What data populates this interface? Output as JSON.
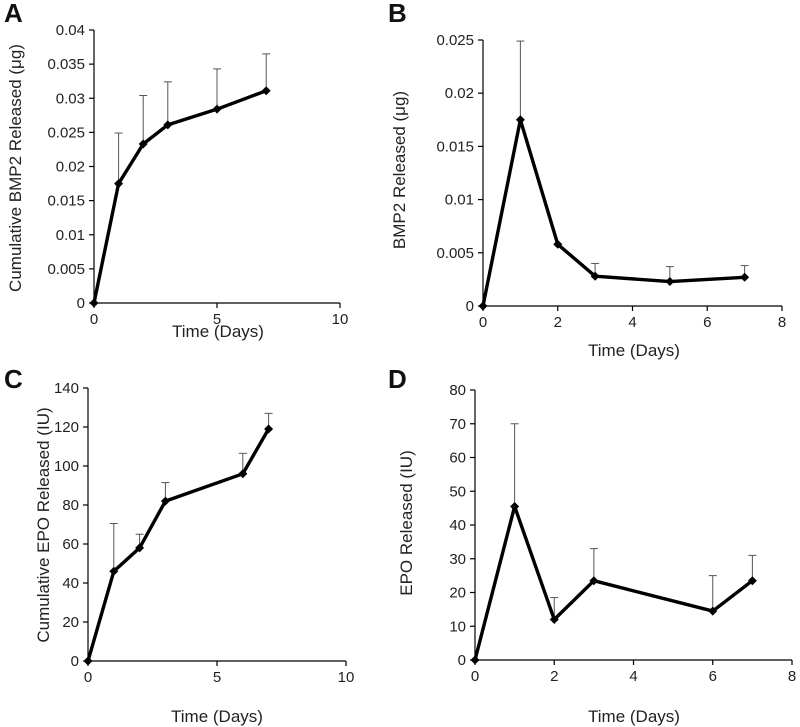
{
  "chart_data": [
    {
      "panel": "A",
      "type": "line",
      "xlabel": "Time (Days)",
      "ylabel": "Cumulative BMP2 Released (μg)",
      "xlim": [
        0,
        10
      ],
      "ylim": [
        0,
        0.04
      ],
      "xticks": [
        0,
        5,
        10
      ],
      "xtick_labels": [
        "0",
        "5",
        "10"
      ],
      "yticks": [
        0,
        0.005,
        0.01,
        0.015,
        0.02,
        0.025,
        0.03,
        0.035,
        0.04
      ],
      "ytick_labels": [
        "0",
        "0.005",
        "0.01",
        "0.015",
        "0.02",
        "0.025",
        "0.03",
        "0.035",
        "0.04"
      ],
      "x": [
        0,
        1,
        2,
        3,
        5,
        7
      ],
      "values": [
        0,
        0.0175,
        0.0233,
        0.0261,
        0.0284,
        0.0311
      ],
      "error": [
        0,
        0.0074,
        0.0071,
        0.0063,
        0.0059,
        0.0054
      ]
    },
    {
      "panel": "B",
      "type": "line",
      "xlabel": "Time (Days)",
      "ylabel": "BMP2 Released (μg)",
      "xlim": [
        0,
        8
      ],
      "ylim": [
        0,
        0.025
      ],
      "xticks": [
        0,
        2,
        4,
        6,
        8
      ],
      "xtick_labels": [
        "0",
        "2",
        "4",
        "6",
        "8"
      ],
      "yticks": [
        0,
        0.005,
        0.01,
        0.015,
        0.02,
        0.025
      ],
      "ytick_labels": [
        "0",
        "0.005",
        "0.01",
        "0.015",
        "0.02",
        "0.025"
      ],
      "x": [
        0,
        1,
        2,
        3,
        5,
        7
      ],
      "values": [
        0,
        0.0175,
        0.0058,
        0.0028,
        0.0023,
        0.0027
      ],
      "error": [
        0,
        0.0074,
        0,
        0.0012,
        0.0014,
        0.0011
      ]
    },
    {
      "panel": "C",
      "type": "line",
      "xlabel": "Time (Days)",
      "ylabel": "Cumulative EPO Released (IU)",
      "xlim": [
        0,
        10
      ],
      "ylim": [
        0,
        140
      ],
      "xticks": [
        0,
        5,
        10
      ],
      "xtick_labels": [
        "0",
        "5",
        "10"
      ],
      "yticks": [
        0,
        20,
        40,
        60,
        80,
        100,
        120,
        140
      ],
      "ytick_labels": [
        "0",
        "20",
        "40",
        "60",
        "80",
        "100",
        "120",
        "140"
      ],
      "x": [
        0,
        1,
        2,
        3,
        6,
        7
      ],
      "values": [
        0,
        46,
        58,
        82,
        96,
        119
      ],
      "error": [
        0,
        24.5,
        7,
        9.5,
        10.5,
        8
      ]
    },
    {
      "panel": "D",
      "type": "line",
      "xlabel": "Time (Days)",
      "ylabel": "EPO Released (IU)",
      "xlim": [
        0,
        8
      ],
      "ylim": [
        0,
        80
      ],
      "xticks": [
        0,
        2,
        4,
        6,
        8
      ],
      "xtick_labels": [
        "0",
        "2",
        "4",
        "6",
        "8"
      ],
      "yticks": [
        0,
        10,
        20,
        30,
        40,
        50,
        60,
        70,
        80
      ],
      "ytick_labels": [
        "0",
        "10",
        "20",
        "30",
        "40",
        "50",
        "60",
        "70",
        "80"
      ],
      "x": [
        0,
        1,
        2,
        3,
        6,
        7
      ],
      "values": [
        0,
        45.5,
        12,
        23.5,
        14.5,
        23.5
      ],
      "error": [
        0,
        24.5,
        6.5,
        9.5,
        10.5,
        7.5
      ]
    }
  ]
}
